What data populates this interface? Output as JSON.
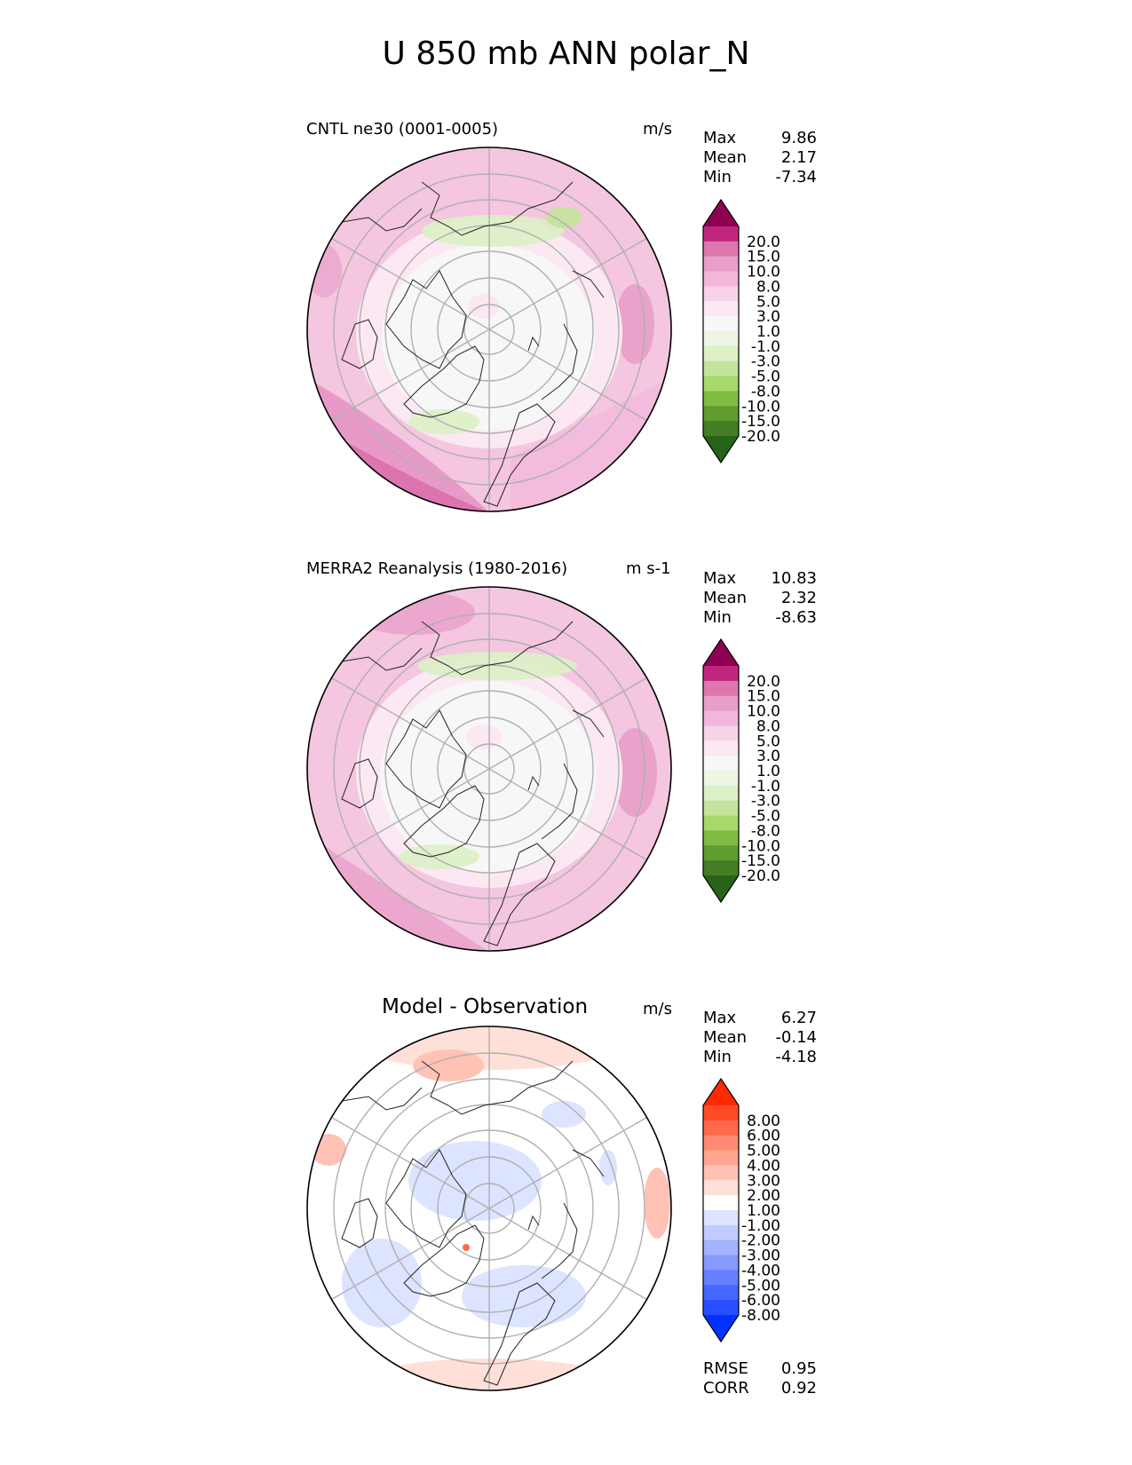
{
  "title": "U 850 mb ANN polar_N",
  "panels": [
    {
      "title": "CNTL ne30 (0001-0005)",
      "units": "m/s",
      "stats": [
        {
          "label": "Max",
          "value": "9.86"
        },
        {
          "label": "Mean",
          "value": "2.17"
        },
        {
          "label": "Min",
          "value": "-7.34"
        }
      ],
      "colorbar": {
        "levels": [
          "20.0",
          "15.0",
          "10.0",
          "8.0",
          "5.0",
          "3.0",
          "1.0",
          "-1.0",
          "-3.0",
          "-5.0",
          "-8.0",
          "-10.0",
          "-15.0",
          "-20.0"
        ],
        "colors": [
          "#8e0152",
          "#c0267e",
          "#de77ae",
          "#e89fc9",
          "#f1b6da",
          "#f7d3e8",
          "#fbe8f2",
          "#f7f7f7",
          "#eef5e3",
          "#dcefc5",
          "#c3e49a",
          "#a6d96a",
          "#7fbc41",
          "#5f9d30",
          "#447d24",
          "#276419"
        ]
      }
    },
    {
      "title": "MERRA2 Reanalysis (1980-2016)",
      "units": "m s-1",
      "stats": [
        {
          "label": "Max",
          "value": "10.83"
        },
        {
          "label": "Mean",
          "value": "2.32"
        },
        {
          "label": "Min",
          "value": "-8.63"
        }
      ],
      "colorbar": {
        "levels": [
          "20.0",
          "15.0",
          "10.0",
          "8.0",
          "5.0",
          "3.0",
          "1.0",
          "-1.0",
          "-3.0",
          "-5.0",
          "-8.0",
          "-10.0",
          "-15.0",
          "-20.0"
        ],
        "colors": [
          "#8e0152",
          "#c0267e",
          "#de77ae",
          "#e89fc9",
          "#f1b6da",
          "#f7d3e8",
          "#fbe8f2",
          "#f7f7f7",
          "#eef5e3",
          "#dcefc5",
          "#c3e49a",
          "#a6d96a",
          "#7fbc41",
          "#5f9d30",
          "#447d24",
          "#276419"
        ]
      }
    },
    {
      "title": "Model - Observation",
      "units": "m/s",
      "stats": [
        {
          "label": "Max",
          "value": "6.27"
        },
        {
          "label": "Mean",
          "value": "-0.14"
        },
        {
          "label": "Min",
          "value": "-4.18"
        }
      ],
      "extra_stats": [
        {
          "label": "RMSE",
          "value": "0.95"
        },
        {
          "label": "CORR",
          "value": "0.92"
        }
      ],
      "colorbar": {
        "levels": [
          "8.00",
          "6.00",
          "5.00",
          "4.00",
          "3.00",
          "2.00",
          "1.00",
          "-1.00",
          "-2.00",
          "-3.00",
          "-4.00",
          "-5.00",
          "-6.00",
          "-8.00"
        ],
        "colors": [
          "#ff2a00",
          "#ff4a26",
          "#ff6a4a",
          "#ff8a70",
          "#ffa693",
          "#ffc2b5",
          "#ffe0d8",
          "#ffffff",
          "#dde4ff",
          "#c0ccff",
          "#a2b3ff",
          "#8599ff",
          "#6680ff",
          "#4766ff",
          "#2a4dff",
          "#0033ff"
        ]
      }
    }
  ],
  "chart_data": [
    {
      "type": "heatmap",
      "title": "CNTL ne30 (0001-0005)",
      "variable": "U 850 mb",
      "projection": "polar_N",
      "units": "m/s",
      "max": 9.86,
      "mean": 2.17,
      "min": -7.34,
      "levels": [
        -20,
        -15,
        -10,
        -8,
        -5,
        -3,
        -1,
        1,
        3,
        5,
        8,
        10,
        15,
        20
      ]
    },
    {
      "type": "heatmap",
      "title": "MERRA2 Reanalysis (1980-2016)",
      "variable": "U 850 mb",
      "projection": "polar_N",
      "units": "m s-1",
      "max": 10.83,
      "mean": 2.32,
      "min": -8.63,
      "levels": [
        -20,
        -15,
        -10,
        -8,
        -5,
        -3,
        -1,
        1,
        3,
        5,
        8,
        10,
        15,
        20
      ]
    },
    {
      "type": "heatmap",
      "title": "Model - Observation",
      "variable": "U 850 mb",
      "projection": "polar_N",
      "units": "m/s",
      "max": 6.27,
      "mean": -0.14,
      "min": -4.18,
      "rmse": 0.95,
      "corr": 0.92,
      "levels": [
        -8,
        -6,
        -5,
        -4,
        -3,
        -2,
        -1,
        1,
        2,
        3,
        4,
        5,
        6,
        8
      ]
    }
  ]
}
